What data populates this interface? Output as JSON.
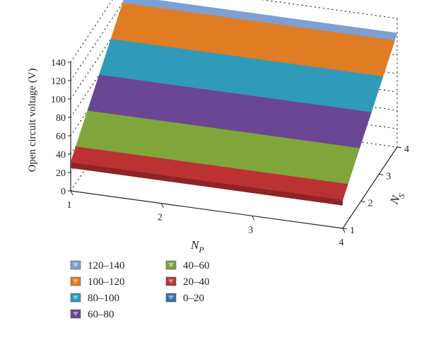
{
  "chart_data": {
    "type": "surface",
    "title": "",
    "zlabel": "Open circuit voltage (V)",
    "xlabel_main": "N",
    "xlabel_sub": "P",
    "ylabel_main": "N",
    "ylabel_sub": "S",
    "x_ticks": [
      "1",
      "2",
      "3",
      "4"
    ],
    "y_ticks": [
      "1",
      "2",
      "3",
      "4"
    ],
    "z_ticks": [
      "0",
      "20",
      "40",
      "60",
      "80",
      "100",
      "120",
      "140"
    ],
    "zlim": [
      0,
      140
    ],
    "grid": true,
    "legend_position": "bottom-left",
    "bands": [
      {
        "name": "120–140",
        "color": "#7e9fd0",
        "low": 120,
        "high": 140
      },
      {
        "name": "100–120",
        "color": "#e07c23",
        "low": 100,
        "high": 120
      },
      {
        "name": "80–100",
        "color": "#2f9bb8",
        "low": 80,
        "high": 100
      },
      {
        "name": "60–80",
        "color": "#6b4695",
        "low": 60,
        "high": 80
      },
      {
        "name": "40–60",
        "color": "#7fa53b",
        "low": 40,
        "high": 60
      },
      {
        "name": "20–40",
        "color": "#bc3233",
        "low": 20,
        "high": 40
      },
      {
        "name": "0–20",
        "color": "#3a6fb2",
        "low": 0,
        "high": 20
      }
    ],
    "surface": {
      "x": [
        1,
        2,
        3,
        4
      ],
      "y": [
        1,
        2,
        3,
        4
      ],
      "z_by_ns": [
        {
          "ns": 1,
          "voltage": 31
        },
        {
          "ns": 4,
          "voltage": 124
        }
      ]
    }
  }
}
